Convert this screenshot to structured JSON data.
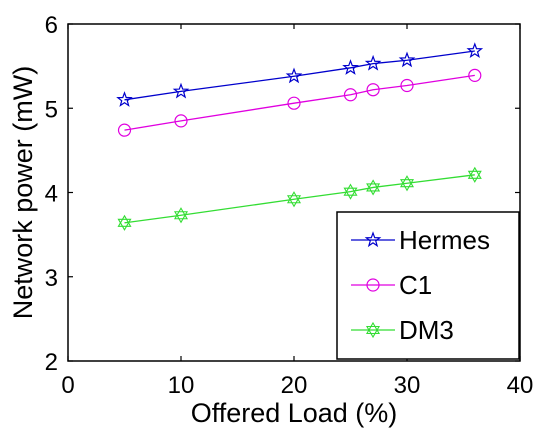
{
  "chart_data": {
    "type": "line",
    "title": "",
    "xlabel": "Offered Load (%)",
    "ylabel": "Network power (mW)",
    "xlim": [
      0,
      40
    ],
    "ylim": [
      2,
      6
    ],
    "xticks": [
      "0",
      "10",
      "20",
      "30",
      "40"
    ],
    "yticks": [
      "2",
      "3",
      "4",
      "5",
      "6"
    ],
    "grid": false,
    "legend_position": "bottom-right",
    "x": [
      5,
      10,
      20,
      25,
      27,
      30,
      36
    ],
    "series": [
      {
        "name": "Hermes",
        "color": "#0000cc",
        "marker": "star-icon",
        "values": [
          5.1,
          5.2,
          5.38,
          5.48,
          5.53,
          5.57,
          5.68
        ]
      },
      {
        "name": "C1",
        "color": "#e000e0",
        "marker": "circle-icon",
        "values": [
          4.74,
          4.85,
          5.06,
          5.16,
          5.22,
          5.27,
          5.39
        ]
      },
      {
        "name": "DM3",
        "color": "#33dd33",
        "marker": "hexagram-icon",
        "values": [
          3.64,
          3.73,
          3.92,
          4.01,
          4.06,
          4.11,
          4.21
        ]
      }
    ]
  }
}
